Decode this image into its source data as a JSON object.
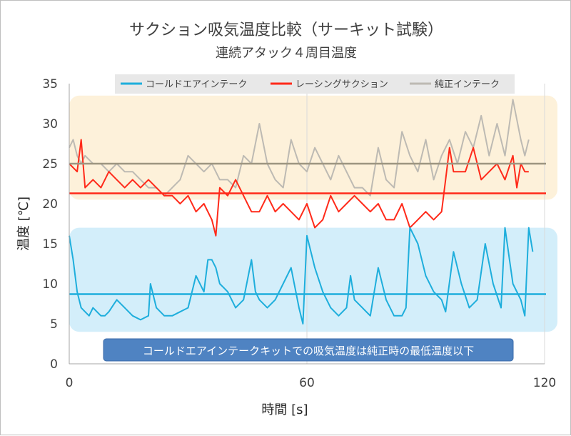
{
  "chart_data": {
    "type": "line",
    "title": "サクション吸気温度比較（サーキット試験）",
    "subtitle": "連続アタック４周目温度",
    "xlabel": "時間 [s]",
    "ylabel": "温度 [℃]",
    "xlim": [
      0,
      120
    ],
    "ylim": [
      0,
      35
    ],
    "x_ticks": [
      "0",
      "60",
      "120"
    ],
    "y_ticks": [
      "0",
      "5",
      "10",
      "15",
      "20",
      "25",
      "30",
      "35"
    ],
    "grid": "vertical",
    "legend_position": "top",
    "series": [
      {
        "name": "コールドエアインテーク",
        "color": "#1eaedc",
        "x": [
          0,
          1,
          2,
          3,
          4,
          5,
          6,
          7,
          8,
          9,
          10,
          12,
          14,
          16,
          18,
          20,
          20.5,
          22,
          24,
          26,
          28,
          30,
          32,
          34,
          35,
          36,
          37,
          38,
          39,
          40,
          41,
          42,
          44,
          46,
          47,
          48,
          50,
          52,
          54,
          56,
          58,
          59,
          60,
          62,
          64,
          66,
          68,
          70,
          71,
          72,
          74,
          76,
          78,
          80,
          82,
          84,
          85,
          86,
          88,
          90,
          92,
          94,
          95,
          97,
          99,
          101,
          103,
          105,
          107,
          109,
          110,
          112,
          114,
          115,
          116,
          117
        ],
        "values": [
          16,
          13,
          9,
          7,
          6.5,
          6,
          7,
          6.5,
          6,
          6,
          6.5,
          8,
          7,
          6,
          5.5,
          6,
          10,
          7,
          6,
          6,
          6.5,
          7,
          11,
          9,
          13,
          13,
          12,
          10,
          9.5,
          9,
          8,
          7,
          8,
          13,
          9,
          8,
          7,
          8,
          10,
          12,
          7,
          5,
          16,
          12,
          9,
          7,
          6,
          7,
          11,
          8,
          7,
          6,
          12,
          8,
          6,
          6,
          7,
          17,
          15,
          11,
          9,
          8,
          6.5,
          14,
          10,
          7,
          8,
          15,
          10,
          7,
          17,
          10,
          8,
          6,
          17,
          14
        ],
        "mean": 8.7
      },
      {
        "name": "レーシングサクション",
        "color": "#ff2a1a",
        "x": [
          0,
          2,
          3,
          4,
          6,
          8,
          10,
          12,
          14,
          16,
          18,
          20,
          22,
          24,
          26,
          28,
          30,
          32,
          34,
          36,
          37,
          38,
          40,
          42,
          44,
          46,
          48,
          50,
          52,
          54,
          56,
          58,
          60,
          62,
          64,
          66,
          68,
          70,
          72,
          74,
          76,
          78,
          80,
          82,
          84,
          86,
          88,
          90,
          92,
          94,
          95,
          96,
          97,
          98,
          100,
          102,
          104,
          106,
          108,
          110,
          112,
          113,
          114,
          115,
          116
        ],
        "values": [
          25,
          24,
          28,
          22,
          23,
          22,
          24,
          23,
          22,
          23,
          22,
          23,
          22,
          21,
          21,
          20,
          21,
          19,
          20,
          18,
          16,
          22,
          21,
          23,
          21,
          19,
          19,
          21,
          19,
          20,
          19,
          18,
          20,
          17,
          18,
          21,
          19,
          20,
          21,
          20,
          19,
          20,
          18,
          18,
          20,
          17,
          18,
          19,
          18,
          19,
          23,
          27,
          24,
          24,
          24,
          27,
          23,
          24,
          25,
          23,
          26,
          22,
          25,
          24,
          24
        ],
        "mean": 21.3
      },
      {
        "name": "純正インテーク",
        "color": "#bdbab3",
        "x": [
          0,
          1,
          2,
          3,
          4,
          6,
          8,
          10,
          12,
          14,
          16,
          18,
          20,
          22,
          24,
          26,
          28,
          30,
          32,
          34,
          36,
          38,
          40,
          42,
          44,
          46,
          48,
          50,
          52,
          54,
          56,
          58,
          60,
          62,
          64,
          66,
          68,
          70,
          72,
          74,
          76,
          78,
          80,
          82,
          84,
          86,
          88,
          90,
          92,
          94,
          96,
          98,
          100,
          102,
          104,
          106,
          108,
          110,
          112,
          114,
          115,
          116
        ],
        "values": [
          27,
          28,
          26,
          25,
          26,
          25,
          25,
          24,
          25,
          24,
          24,
          23,
          22,
          22,
          21,
          22,
          23,
          26,
          25,
          24,
          25,
          23,
          23,
          22,
          26,
          25,
          30,
          25,
          23,
          22,
          28,
          25,
          24,
          27,
          25,
          23,
          26,
          24,
          22,
          22,
          21,
          27,
          23,
          22,
          29,
          26,
          24,
          28,
          23,
          26,
          28,
          25,
          29,
          27,
          31,
          26,
          30,
          26,
          33,
          28,
          26,
          28
        ],
        "mean": 25.0
      }
    ],
    "bands": [
      {
        "from": 20.5,
        "to": 33.5,
        "color": "#fdf1da"
      },
      {
        "from": 4,
        "to": 17,
        "color": "#d3eefa"
      }
    ],
    "annotation": "コールドエアインテークキットでの吸気温度は純正時の最低温度以下",
    "annotation_color": "#4f83c2"
  }
}
